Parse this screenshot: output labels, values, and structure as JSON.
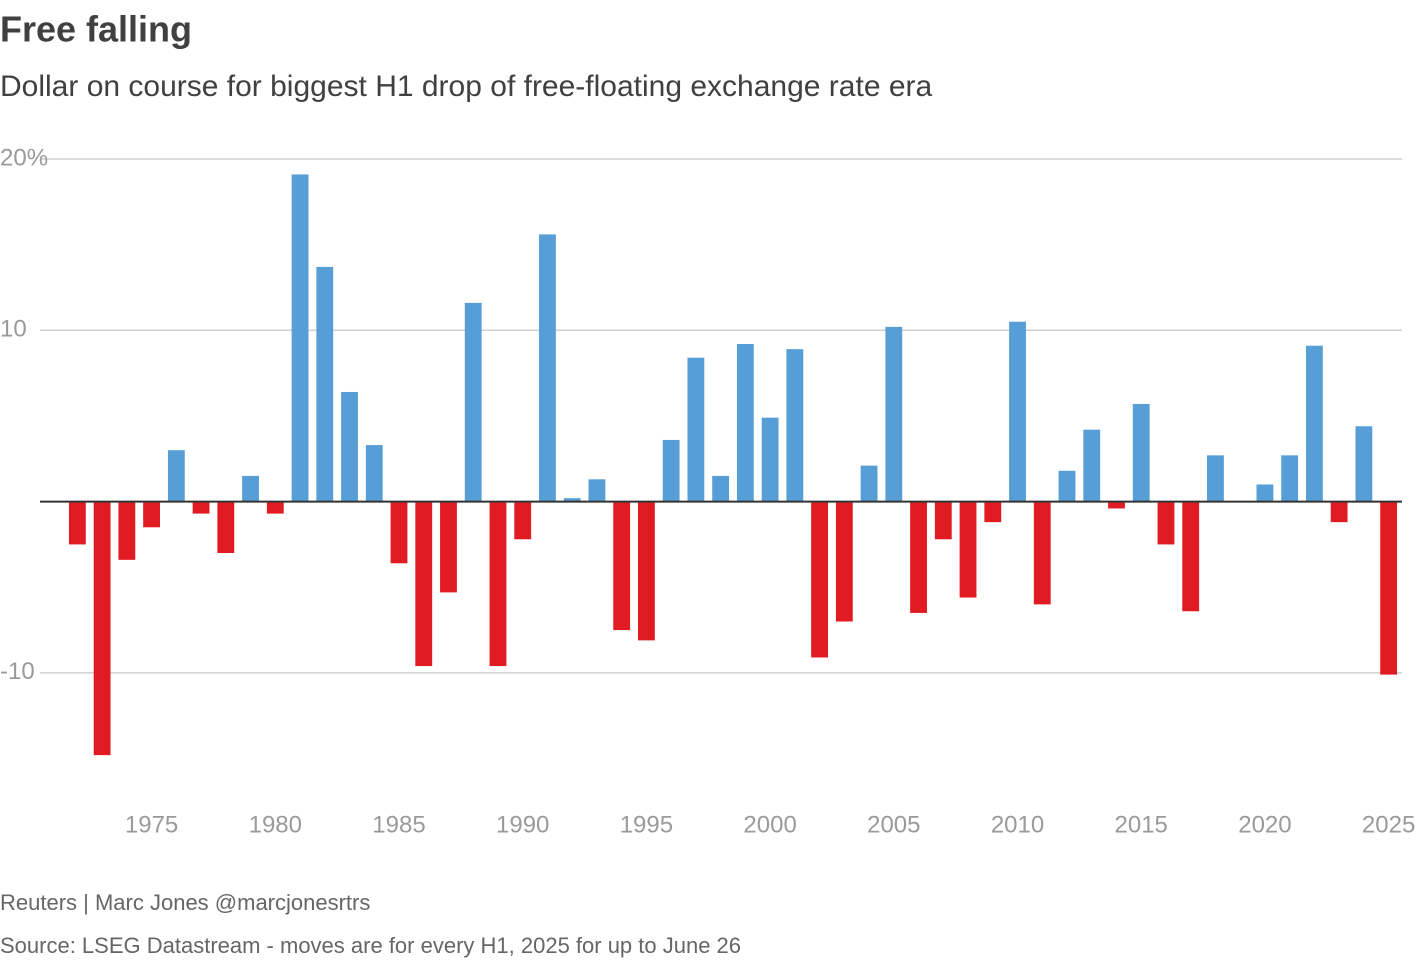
{
  "chart_data": {
    "type": "bar",
    "title": "Free falling",
    "subtitle": "Dollar on course for biggest H1 drop of free-floating exchange rate era",
    "credit": "Reuters | Marc Jones @marcjonesrtrs",
    "source": "Source: LSEG Datastream - moves are for every H1, 2025 for up to June 26",
    "x": [
      1972,
      1973,
      1974,
      1975,
      1976,
      1977,
      1978,
      1979,
      1980,
      1981,
      1982,
      1983,
      1984,
      1985,
      1986,
      1987,
      1988,
      1989,
      1990,
      1991,
      1992,
      1993,
      1994,
      1995,
      1996,
      1997,
      1998,
      1999,
      2000,
      2001,
      2002,
      2003,
      2004,
      2005,
      2006,
      2007,
      2008,
      2009,
      2010,
      2011,
      2012,
      2013,
      2014,
      2015,
      2016,
      2017,
      2018,
      2019,
      2020,
      2021,
      2022,
      2023,
      2024,
      2025
    ],
    "values": [
      -2.5,
      -14.8,
      -3.4,
      -1.5,
      3.0,
      -0.7,
      -3.0,
      1.5,
      -0.7,
      19.1,
      13.7,
      6.4,
      3.3,
      -3.6,
      -9.6,
      -5.3,
      11.6,
      -9.6,
      -2.2,
      15.6,
      0.2,
      1.3,
      -7.5,
      -8.1,
      3.6,
      8.4,
      1.5,
      9.2,
      4.9,
      8.9,
      -9.1,
      -7.0,
      2.1,
      10.2,
      -6.5,
      -2.2,
      -5.6,
      -1.2,
      10.5,
      -6.0,
      1.8,
      4.2,
      -0.4,
      5.7,
      -2.5,
      -6.4,
      2.7,
      0,
      1.0,
      2.7,
      9.1,
      -1.2,
      4.4,
      -10.1
    ],
    "positive_color": "#579ed6",
    "negative_color": "#e11b22",
    "xlim": [
      1971.5,
      2025.5
    ],
    "xticks": [
      1975,
      1980,
      1985,
      1990,
      1995,
      2000,
      2005,
      2010,
      2015,
      2020,
      2025
    ],
    "ylim": [
      -16.5,
      20
    ],
    "yticks": [
      -10,
      10,
      {
        "value": 20,
        "label": "20%"
      }
    ],
    "grid": true
  }
}
